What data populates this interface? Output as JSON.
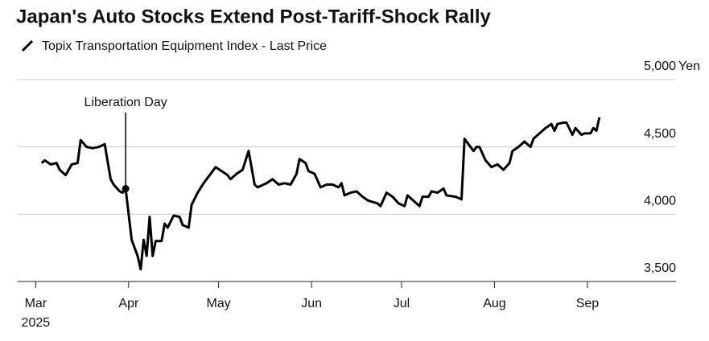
{
  "chart_data": {
    "type": "line",
    "title": "Japan's Auto Stocks Extend Post-Tariff-Shock Rally",
    "series": [
      {
        "name": "Topix Transportation Equipment Index - Last Price",
        "color": "#000000",
        "x": [
          2,
          3,
          5,
          7,
          8,
          10,
          11,
          12,
          14,
          15,
          17,
          19,
          21,
          23,
          25,
          26,
          28,
          29,
          30,
          32,
          34,
          35,
          36,
          37,
          38,
          39,
          40,
          42,
          43,
          44,
          46,
          48,
          49,
          51,
          52,
          54,
          56,
          58,
          60,
          62,
          64,
          65,
          67,
          69,
          71,
          73,
          74,
          77,
          79,
          81,
          83,
          85,
          87,
          88,
          90,
          91,
          93,
          95,
          97,
          99,
          101,
          102,
          103,
          105,
          107,
          109,
          111,
          114,
          115,
          117,
          119,
          121,
          123,
          124,
          126,
          128,
          129,
          131,
          132,
          134,
          136,
          137,
          140,
          142,
          143,
          144,
          146,
          147,
          148,
          150,
          152,
          154,
          156,
          158,
          159,
          161,
          163,
          165,
          166,
          168,
          170,
          172,
          173,
          174,
          176,
          177,
          179,
          180,
          182,
          183,
          185,
          186,
          187,
          188
        ],
        "values": [
          4380,
          4400,
          4370,
          4380,
          4330,
          4290,
          4330,
          4370,
          4380,
          4550,
          4500,
          4490,
          4500,
          4520,
          4260,
          4220,
          4170,
          4160,
          4190,
          3810,
          3690,
          3590,
          3810,
          3690,
          3980,
          3690,
          3800,
          3800,
          3930,
          3900,
          3990,
          3980,
          3920,
          3900,
          4070,
          4160,
          4230,
          4290,
          4350,
          4320,
          4290,
          4260,
          4300,
          4330,
          4470,
          4220,
          4200,
          4230,
          4260,
          4220,
          4230,
          4220,
          4300,
          4410,
          4380,
          4320,
          4300,
          4200,
          4220,
          4220,
          4200,
          4230,
          4140,
          4160,
          4170,
          4130,
          4100,
          4080,
          4060,
          4160,
          4130,
          4080,
          4060,
          4140,
          4100,
          4060,
          4130,
          4130,
          4170,
          4160,
          4190,
          4140,
          4130,
          4110,
          4560,
          4530,
          4470,
          4500,
          4500,
          4400,
          4350,
          4370,
          4330,
          4380,
          4470,
          4500,
          4540,
          4500,
          4560,
          4600,
          4640,
          4670,
          4620,
          4670,
          4680,
          4680,
          4590,
          4640,
          4590,
          4600,
          4600,
          4640,
          4620,
          4720
        ]
      }
    ],
    "xlim": [
      -6,
      213
    ],
    "xticks": [
      {
        "value": 0,
        "label": "Mar"
      },
      {
        "value": 31,
        "label": "Apr"
      },
      {
        "value": 61,
        "label": "May"
      },
      {
        "value": 92,
        "label": "Jun"
      },
      {
        "value": 122,
        "label": "Jul"
      },
      {
        "value": 153,
        "label": "Aug"
      },
      {
        "value": 184,
        "label": "Sep"
      }
    ],
    "year": "2025",
    "ylim": [
      3500,
      5000
    ],
    "yticks": [
      {
        "value": 3500,
        "label": "3,500"
      },
      {
        "value": 4000,
        "label": "4,000"
      },
      {
        "value": 4500,
        "label": "4,500"
      },
      {
        "value": 5000,
        "label": "5,000"
      }
    ],
    "y_unit": "Yen",
    "grid": true,
    "annotations": [
      {
        "text": "Liberation Day",
        "x": 30
      }
    ]
  }
}
